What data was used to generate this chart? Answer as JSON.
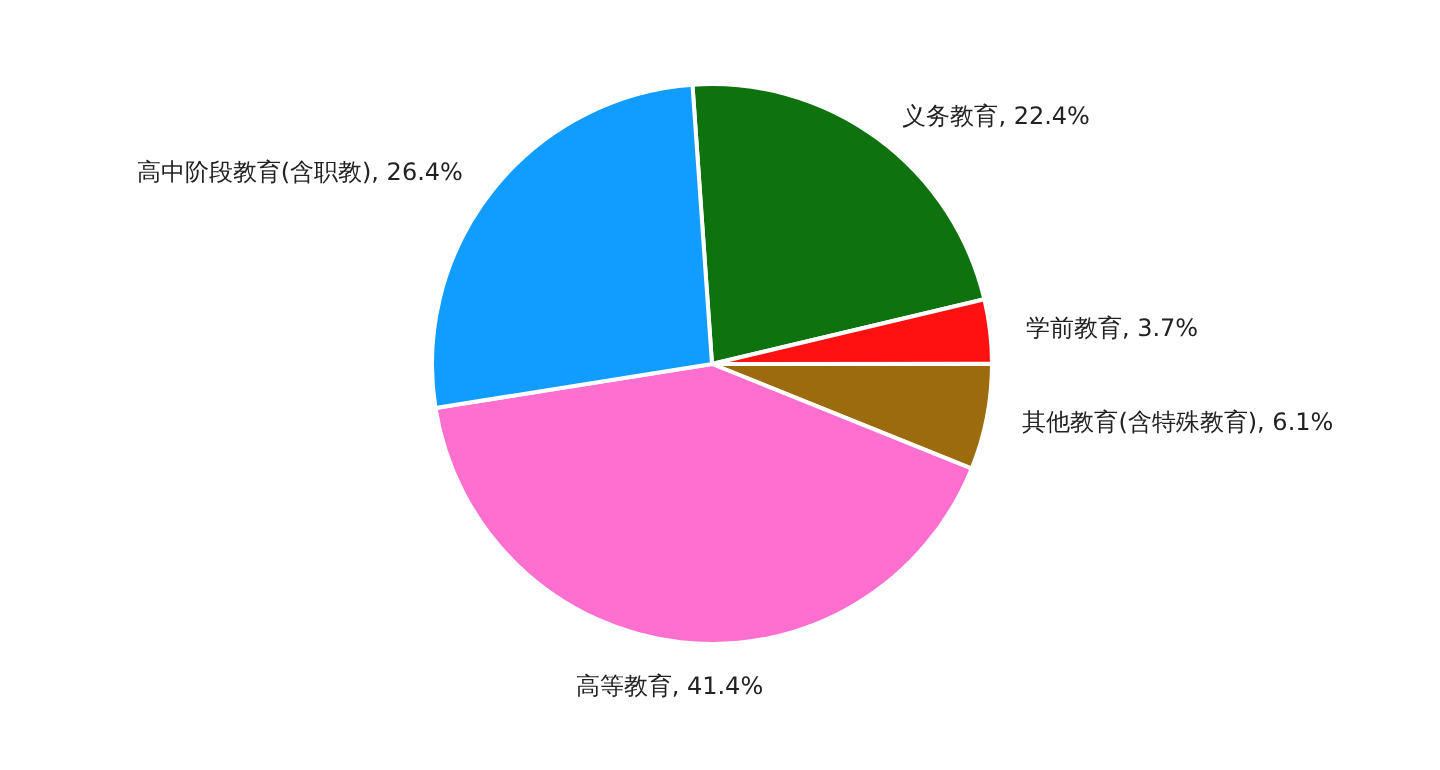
{
  "chart_data": {
    "type": "pie",
    "categories": [
      "义务教育",
      "学前教育",
      "其他教育(含特殊教育)",
      "高等教育",
      "高中阶段教育(含职教)"
    ],
    "values": [
      22.4,
      3.7,
      6.1,
      41.4,
      26.4
    ],
    "value_labels": [
      "22.4%",
      "3.7%",
      "6.1%",
      "41.4%",
      "26.4%"
    ],
    "colors": [
      "#0e720e",
      "#ff1111",
      "#9c6b0e",
      "#ff6fcf",
      "#119dff"
    ]
  }
}
